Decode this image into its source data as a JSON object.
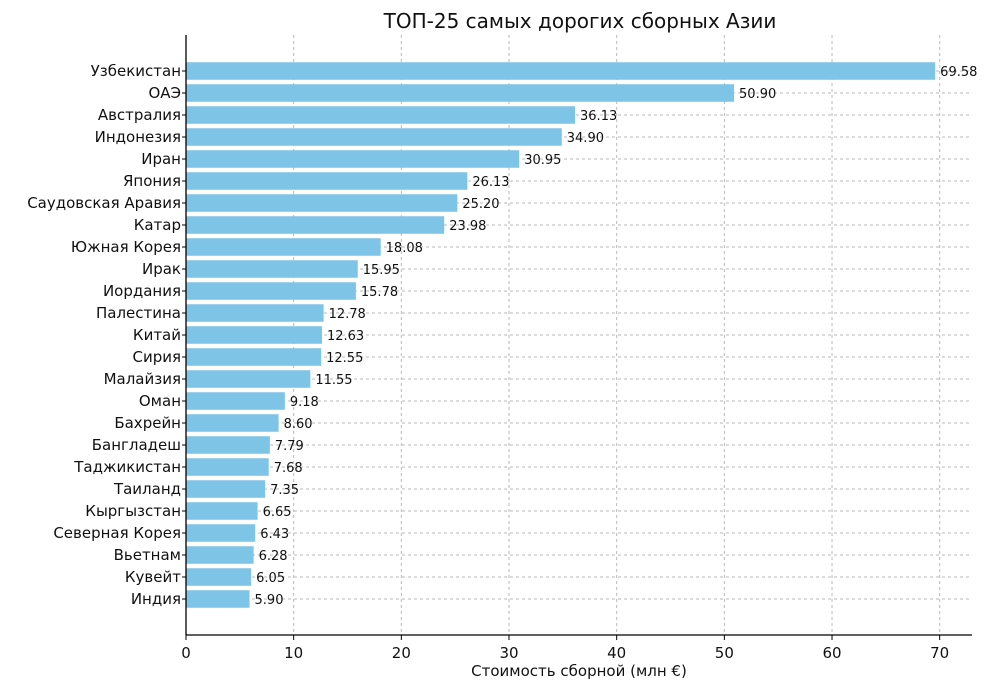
{
  "chart_data": {
    "type": "bar",
    "orientation": "horizontal",
    "title": "ТОП-25 самых дорогих сборных Азии",
    "xlabel": "Стоимость сборной (млн €)",
    "ylabel": "",
    "xlim": [
      0,
      73
    ],
    "xticks": [
      0,
      10,
      20,
      30,
      40,
      50,
      60,
      70
    ],
    "grid": true,
    "bar_color": "#7ec4e6",
    "categories": [
      "Узбекистан",
      "ОАЭ",
      "Австралия",
      "Индонезия",
      "Иран",
      "Япония",
      "Саудовская Аравия",
      "Катар",
      "Южная Корея",
      "Ирак",
      "Иордания",
      "Палестина",
      "Китай",
      "Сирия",
      "Малайзия",
      "Оман",
      "Бахрейн",
      "Бангладеш",
      "Таджикистан",
      "Таиланд",
      "Кыргызстан",
      "Северная Корея",
      "Вьетнам",
      "Кувейт",
      "Индия"
    ],
    "values": [
      69.58,
      50.9,
      36.13,
      34.9,
      30.95,
      26.13,
      25.2,
      23.98,
      18.08,
      15.95,
      15.78,
      12.78,
      12.63,
      12.55,
      11.55,
      9.18,
      8.6,
      7.79,
      7.68,
      7.35,
      6.65,
      6.43,
      6.28,
      6.05,
      5.9
    ],
    "value_labels": [
      "69.58",
      "50.90",
      "36.13",
      "34.90",
      "30.95",
      "26.13",
      "25.20",
      "23.98",
      "18.08",
      "15.95",
      "15.78",
      "12.78",
      "12.63",
      "12.55",
      "11.55",
      "9.18",
      "8.60",
      "7.79",
      "7.68",
      "7.35",
      "6.65",
      "6.43",
      "6.28",
      "6.05",
      "5.90"
    ]
  }
}
